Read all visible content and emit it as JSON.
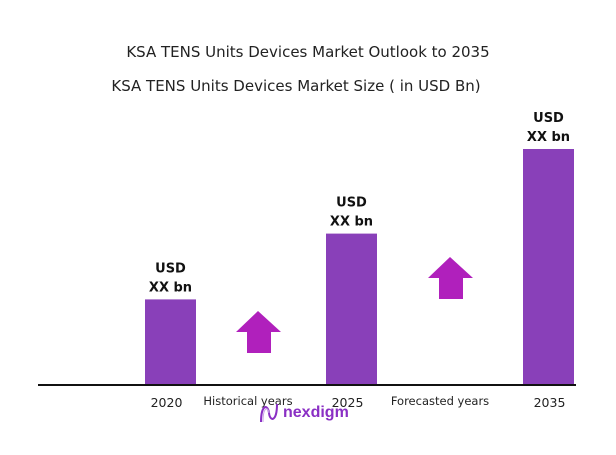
{
  "chart_data": {
    "type": "bar",
    "title": "KSA TENS Units Devices Market Outlook to 2035",
    "subtitle": "KSA TENS Units Devices  Market Size  ( in USD Bn)",
    "categories": [
      "2020",
      "2025",
      "2035"
    ],
    "values": [
      36,
      64,
      100
    ],
    "value_note": "relative bar heights; actual values not printed",
    "data_labels": [
      [
        "USD",
        "XX bn"
      ],
      [
        "USD",
        "XX bn"
      ],
      [
        "USD",
        "XX bn"
      ]
    ],
    "annotations": [
      "Historical years",
      "Forecasted years"
    ],
    "ylim": [
      0,
      100
    ],
    "grid": false,
    "legend": "none",
    "bar_color": "#8940b9",
    "arrow_color": "#b020bc"
  },
  "logo": {
    "text": "nexdigm",
    "color": "#8a2fc4"
  }
}
